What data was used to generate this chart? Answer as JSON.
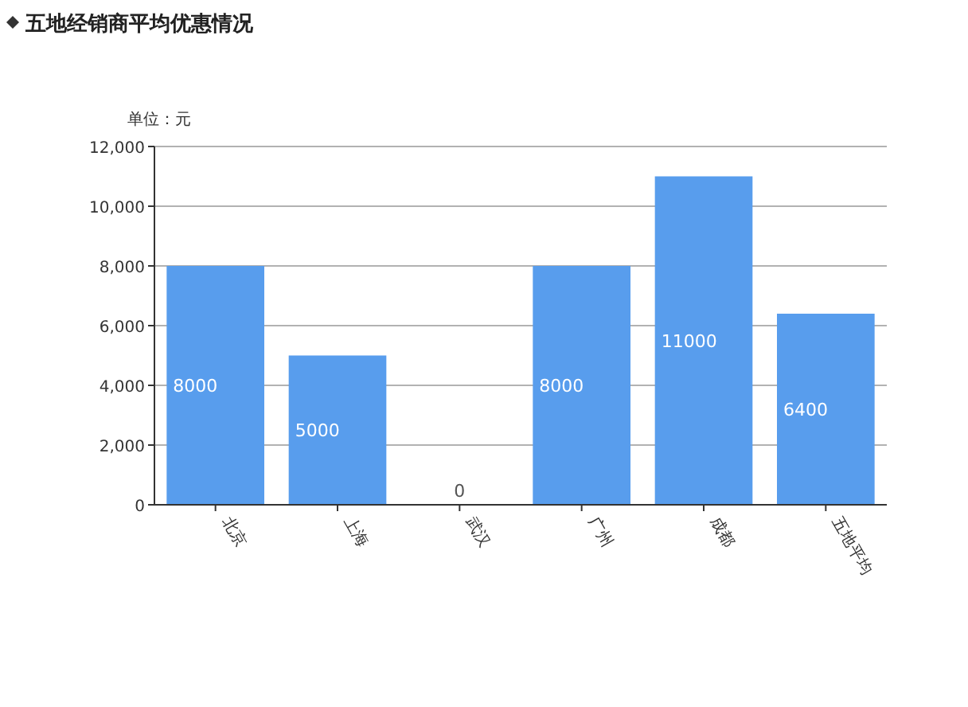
{
  "chart_data": {
    "type": "bar",
    "title": "五地经销商平均优惠情况",
    "annotations": [
      "单位：元"
    ],
    "categories": [
      "北京",
      "上海",
      "武汉",
      "广州",
      "成都",
      "五地平均"
    ],
    "values": [
      8000,
      5000,
      0,
      8000,
      11000,
      6400
    ],
    "color": "#589ded",
    "ylim": [
      0,
      12000
    ],
    "yticks": [
      0,
      {
        "value": 2000,
        "label": "2,000"
      },
      {
        "value": 4000,
        "label": "4,000"
      },
      {
        "value": 6000,
        "label": "6,000"
      },
      {
        "value": 8000,
        "label": "8,000"
      },
      {
        "value": 10000,
        "label": "10,000"
      },
      {
        "value": 12000,
        "label": "12,000"
      }
    ],
    "grid": "y",
    "data_labels": true
  }
}
